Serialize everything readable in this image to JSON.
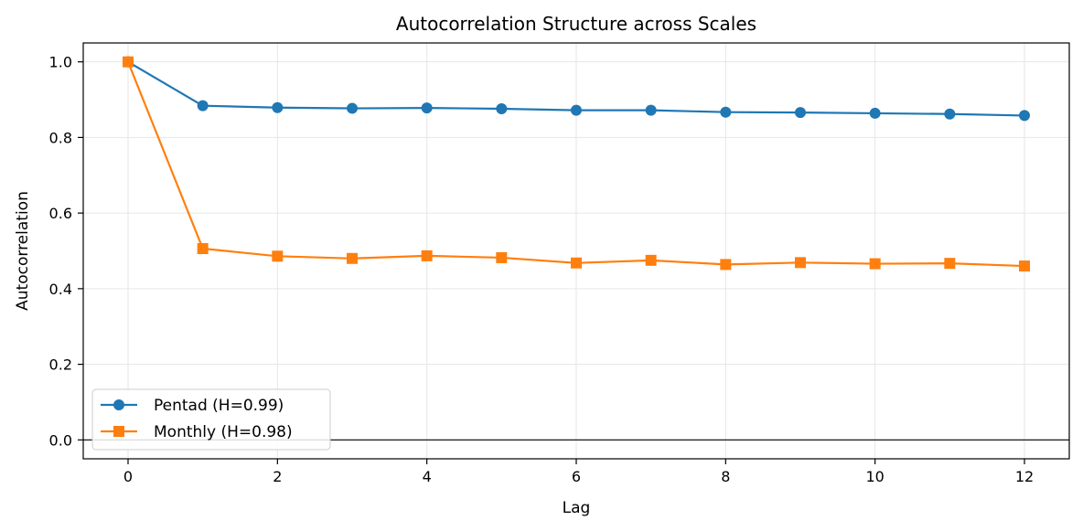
{
  "chart_data": {
    "type": "line",
    "title": "Autocorrelation Structure across Scales",
    "xlabel": "Lag",
    "ylabel": "Autocorrelation",
    "xlim": [
      -0.6,
      12.6
    ],
    "ylim": [
      -0.05,
      1.05
    ],
    "xticks": [
      0,
      2,
      4,
      6,
      8,
      10,
      12
    ],
    "yticks": [
      0.0,
      0.2,
      0.4,
      0.6,
      0.8,
      1.0
    ],
    "xtick_labels": [
      "0",
      "2",
      "4",
      "6",
      "8",
      "10",
      "12"
    ],
    "ytick_labels": [
      "0.0",
      "0.2",
      "0.4",
      "0.6",
      "0.8",
      "1.0"
    ],
    "grid": true,
    "zero_line": true,
    "legend_position": "lower-left",
    "x": [
      0,
      1,
      2,
      3,
      4,
      5,
      6,
      7,
      8,
      9,
      10,
      11,
      12
    ],
    "series": [
      {
        "name": "Pentad (H=0.99)",
        "marker": "circle",
        "color": "#1f77b4",
        "values": [
          1.0,
          0.884,
          0.879,
          0.877,
          0.878,
          0.876,
          0.872,
          0.872,
          0.867,
          0.866,
          0.864,
          0.862,
          0.858
        ]
      },
      {
        "name": "Monthly (H=0.98)",
        "marker": "square",
        "color": "#ff7f0e",
        "values": [
          1.0,
          0.506,
          0.486,
          0.48,
          0.487,
          0.482,
          0.468,
          0.475,
          0.464,
          0.469,
          0.466,
          0.467,
          0.46
        ]
      }
    ]
  }
}
